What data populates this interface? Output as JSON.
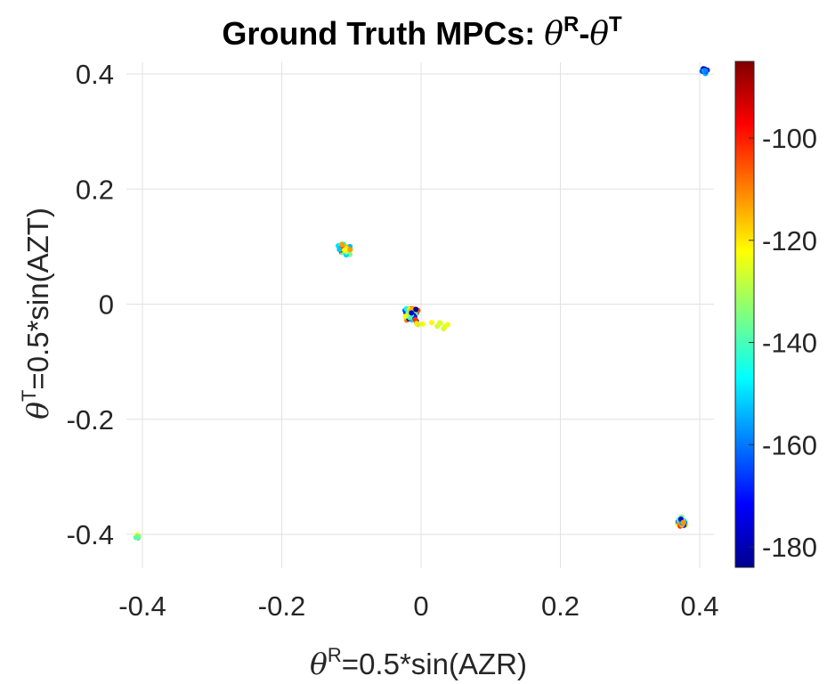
{
  "chart_data": {
    "type": "scatter",
    "title_main": "Ground Truth MPCs: ",
    "title_theta": "θ",
    "title_sup_r": "R",
    "title_dash": "-",
    "title_sup_t": "T",
    "xlabel_theta": "θ",
    "xlabel_sup": "R",
    "xlabel_text": "=0.5*sin(AZR)",
    "ylabel_theta": "θ",
    "ylabel_sup": "T",
    "ylabel_text": "=0.5*sin(AZT)",
    "xlim": [
      -0.42,
      0.42
    ],
    "ylim": [
      -0.46,
      0.42
    ],
    "xticks": [
      -0.4,
      -0.2,
      0,
      0.2,
      0.4
    ],
    "xtick_labels": [
      "-0.4",
      "-0.2",
      "0",
      "0.2",
      "0.4"
    ],
    "yticks": [
      0.4,
      0.2,
      0,
      -0.2,
      -0.4
    ],
    "ytick_labels": [
      "0.4",
      "0.2",
      "0",
      "-0.2",
      "-0.4"
    ],
    "grid": true,
    "colorbar": {
      "colormap": "jet",
      "clim": [
        -184,
        -85
      ],
      "ticks": [
        -100,
        -120,
        -140,
        -160,
        -180
      ],
      "tick_labels": [
        "-100",
        "-120",
        "-140",
        "-160",
        "-180"
      ]
    },
    "clusters": [
      {
        "name": "top-right",
        "x": 0.407,
        "y": 0.405,
        "x_spread": 0.006,
        "y_spread": 0.006,
        "n": 14,
        "power_range": [
          -184,
          -140
        ]
      },
      {
        "name": "upper-left",
        "x": -0.11,
        "y": 0.095,
        "x_spread": 0.012,
        "y_spread": 0.014,
        "n": 34,
        "power_range": [
          -180,
          -95
        ]
      },
      {
        "name": "center",
        "x": -0.013,
        "y": -0.018,
        "x_spread": 0.013,
        "y_spread": 0.016,
        "n": 60,
        "power_range": [
          -184,
          -95
        ]
      },
      {
        "name": "center-tail",
        "x": 0.025,
        "y": -0.035,
        "x_spread": 0.035,
        "y_spread": 0.01,
        "n": 10,
        "power_range": [
          -130,
          -118
        ]
      },
      {
        "name": "bottom-right",
        "x": 0.373,
        "y": -0.378,
        "x_spread": 0.009,
        "y_spread": 0.01,
        "n": 30,
        "power_range": [
          -184,
          -100
        ]
      },
      {
        "name": "bottom-left",
        "x": -0.407,
        "y": -0.403,
        "x_spread": 0.004,
        "y_spread": 0.004,
        "n": 10,
        "power_range": [
          -170,
          -120
        ]
      }
    ]
  }
}
